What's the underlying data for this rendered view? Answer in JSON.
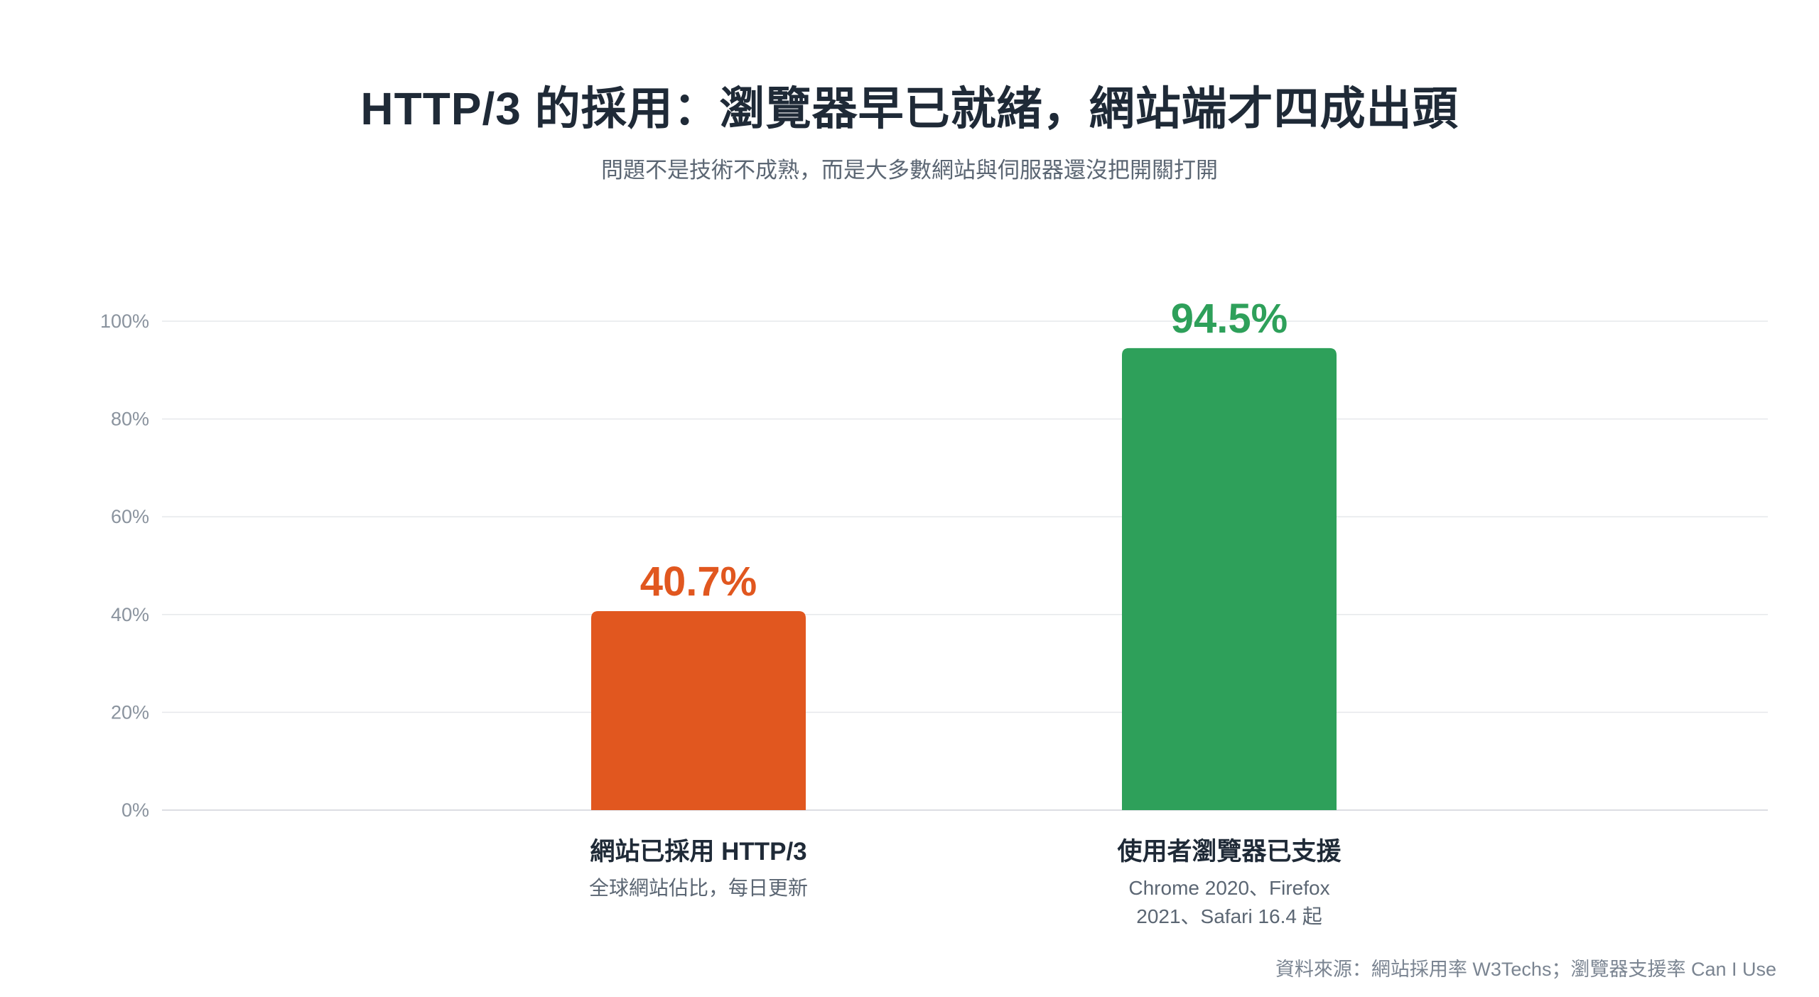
{
  "title": "HTTP/3 的採用：瀏覽器早已就緒，網站端才四成出頭",
  "subtitle": "問題不是技術不成熟，而是大多數網站與伺服器還沒把開關打開",
  "source": "資料來源：網站採用率 W3Techs；瀏覽器支援率 Can I Use",
  "chart_data": {
    "type": "bar",
    "categories": [
      "網站已採用 HTTP/3",
      "使用者瀏覽器已支援"
    ],
    "descriptions": [
      [
        "全球網站佔比，每日更新"
      ],
      [
        "Chrome 2020、Firefox",
        "2021、Safari 16.4 起"
      ]
    ],
    "values": [
      40.7,
      94.5
    ],
    "value_labels": [
      "40.7%",
      "94.5%"
    ],
    "colors": [
      "#e1571f",
      "#2ea05a"
    ],
    "ylim": [
      0,
      100
    ],
    "yticks": [
      0,
      20,
      40,
      60,
      80,
      100
    ],
    "ytick_labels": [
      "0%",
      "20%",
      "40%",
      "60%",
      "80%",
      "100%"
    ],
    "grid": true,
    "legend": "none"
  }
}
